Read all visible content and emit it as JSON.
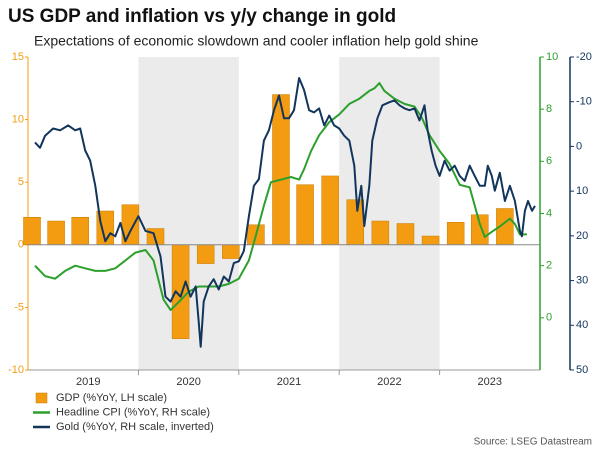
{
  "chart_data": {
    "type": "bar_line",
    "title": "US GDP and inflation vs y/y change in gold",
    "subtitle": "Expectations of economic slowdown and cooler inflation help gold shine",
    "source": "Source: LSEG Datastream",
    "xlim": [
      2018.9,
      2024.0
    ],
    "xticks": [
      {
        "value": 2019.5,
        "label": "2019"
      },
      {
        "value": 2020.5,
        "label": "2020"
      },
      {
        "value": 2021.5,
        "label": "2021"
      },
      {
        "value": 2022.5,
        "label": "2022"
      },
      {
        "value": 2023.5,
        "label": "2023"
      }
    ],
    "shaded_spans": [
      [
        2020,
        2021
      ],
      [
        2022,
        2023
      ]
    ],
    "ylim": [
      -10,
      15
    ],
    "yticks": [
      -10,
      -5,
      0,
      5,
      10,
      15
    ],
    "y2lim": [
      -2,
      10
    ],
    "y2ticks": [
      0,
      2,
      4,
      6,
      8,
      10
    ],
    "y3lim": [
      -20,
      50
    ],
    "y3ticks": [
      -20,
      -10,
      0,
      10,
      20,
      30,
      40,
      50
    ],
    "y3_inverted": true,
    "series": [
      {
        "name": "GDP (%YoY, LH scale)",
        "type": "bar",
        "axis": "y",
        "color": "#f39c12",
        "x": [
          2018.94,
          2019.18,
          2019.42,
          2019.67,
          2019.92,
          2020.17,
          2020.42,
          2020.67,
          2020.92,
          2021.17,
          2021.42,
          2021.66,
          2021.91,
          2022.16,
          2022.41,
          2022.66,
          2022.91,
          2023.16,
          2023.4,
          2023.65
        ],
        "values": [
          2.2,
          1.9,
          2.2,
          2.7,
          3.2,
          1.3,
          -7.5,
          -1.5,
          -1.1,
          1.6,
          12.0,
          4.8,
          5.5,
          3.6,
          1.9,
          1.7,
          0.7,
          1.8,
          2.4,
          2.9
        ]
      },
      {
        "name": "Headline CPI (%YoY, RH scale)",
        "type": "line",
        "axis": "y2",
        "color": "#2ca02c",
        "x": [
          2018.97,
          2019.07,
          2019.17,
          2019.27,
          2019.37,
          2019.47,
          2019.57,
          2019.67,
          2019.77,
          2019.87,
          2019.97,
          2020.07,
          2020.15,
          2020.25,
          2020.32,
          2020.4,
          2020.5,
          2020.6,
          2020.7,
          2020.8,
          2020.9,
          2021.0,
          2021.1,
          2021.18,
          2021.25,
          2021.32,
          2021.42,
          2021.52,
          2021.6,
          2021.65,
          2021.72,
          2021.8,
          2021.9,
          2022.0,
          2022.1,
          2022.2,
          2022.3,
          2022.35,
          2022.4,
          2022.45,
          2022.55,
          2022.65,
          2022.75,
          2022.82,
          2022.9,
          2023.0,
          2023.1,
          2023.2,
          2023.3,
          2023.4,
          2023.45,
          2023.52,
          2023.6,
          2023.7,
          2023.75,
          2023.8,
          2023.87
        ],
        "values": [
          2.0,
          1.6,
          1.5,
          1.8,
          2.0,
          1.9,
          1.8,
          1.8,
          1.9,
          2.2,
          2.5,
          2.6,
          2.2,
          0.7,
          0.3,
          0.6,
          1.0,
          1.2,
          1.2,
          1.2,
          1.3,
          1.5,
          2.2,
          3.3,
          4.3,
          5.2,
          5.3,
          5.4,
          5.3,
          5.7,
          6.4,
          7.0,
          7.5,
          7.8,
          8.2,
          8.4,
          8.7,
          8.8,
          9.0,
          8.7,
          8.4,
          8.2,
          8.1,
          7.7,
          7.0,
          6.4,
          5.9,
          5.1,
          5.0,
          3.6,
          3.1,
          3.3,
          3.5,
          3.8,
          3.6,
          3.2,
          3.2
        ]
      },
      {
        "name": "Gold (%YoY, RH scale, inverted)",
        "type": "line",
        "axis": "y3",
        "color": "#12355b",
        "x": [
          2018.97,
          2019.02,
          2019.07,
          2019.15,
          2019.22,
          2019.3,
          2019.37,
          2019.42,
          2019.47,
          2019.52,
          2019.57,
          2019.62,
          2019.67,
          2019.72,
          2019.77,
          2019.82,
          2019.87,
          2019.92,
          2020.0,
          2020.07,
          2020.15,
          2020.22,
          2020.27,
          2020.32,
          2020.37,
          2020.42,
          2020.47,
          2020.52,
          2020.57,
          2020.6,
          2020.62,
          2020.65,
          2020.7,
          2020.75,
          2020.8,
          2020.85,
          2020.9,
          2020.95,
          2021.0,
          2021.05,
          2021.1,
          2021.15,
          2021.2,
          2021.25,
          2021.3,
          2021.35,
          2021.4,
          2021.45,
          2021.5,
          2021.55,
          2021.6,
          2021.65,
          2021.7,
          2021.75,
          2021.8,
          2021.85,
          2021.9,
          2021.95,
          2022.0,
          2022.05,
          2022.1,
          2022.15,
          2022.18,
          2022.22,
          2022.25,
          2022.3,
          2022.33,
          2022.38,
          2022.43,
          2022.5,
          2022.55,
          2022.6,
          2022.65,
          2022.7,
          2022.75,
          2022.8,
          2022.85,
          2022.88,
          2022.92,
          2022.96,
          2023.0,
          2023.05,
          2023.1,
          2023.15,
          2023.2,
          2023.25,
          2023.3,
          2023.35,
          2023.4,
          2023.45,
          2023.48,
          2023.52,
          2023.55,
          2023.6,
          2023.65,
          2023.7,
          2023.75,
          2023.8,
          2023.82,
          2023.85,
          2023.88,
          2023.92,
          2023.95
        ],
        "values": [
          -0.9,
          0.3,
          -2.4,
          -4.0,
          -3.6,
          -4.7,
          -3.6,
          -4.0,
          0.9,
          3.2,
          8.8,
          16.7,
          21.2,
          19.4,
          20.1,
          17.1,
          21.2,
          18.9,
          15.6,
          18.9,
          19.4,
          24.6,
          33.6,
          34.7,
          32.4,
          33.6,
          30.2,
          33.6,
          31.3,
          39.2,
          44.8,
          34.7,
          31.3,
          29.7,
          32.0,
          29.1,
          30.2,
          26.1,
          25.7,
          23.4,
          15.6,
          8.8,
          7.3,
          -1.3,
          -3.6,
          -8.1,
          -11.4,
          -6.3,
          -6.3,
          -8.1,
          -15.3,
          -12.6,
          -8.1,
          -7.6,
          -8.5,
          -4.7,
          -6.9,
          -4.7,
          -4.0,
          -2.4,
          -1.3,
          4.3,
          14.4,
          8.8,
          17.8,
          8.8,
          -1.3,
          -6.3,
          -9.2,
          -9.9,
          -10.3,
          -9.2,
          -8.5,
          -8.1,
          -8.5,
          -5.8,
          -9.2,
          -3.6,
          0.9,
          4.3,
          6.6,
          3.2,
          5.4,
          4.3,
          6.6,
          7.7,
          4.3,
          6.6,
          8.8,
          8.8,
          4.3,
          6.6,
          9.9,
          5.9,
          12.2,
          8.8,
          12.2,
          18.9,
          20.1,
          14.4,
          12.2,
          14.4,
          13.3
        ]
      }
    ]
  }
}
